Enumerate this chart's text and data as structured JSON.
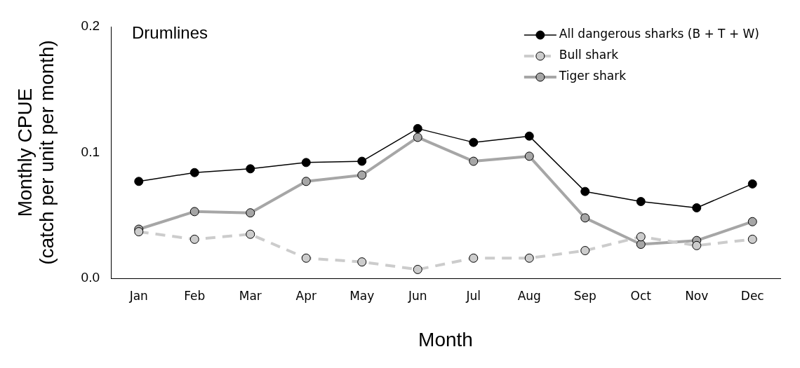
{
  "chart_data": {
    "type": "line",
    "xlabel": "Month",
    "ylabel": "Monthly CPUE\n(catch per unit per month)",
    "annotations": [
      "Drumlines"
    ],
    "categories": [
      "Jan",
      "Feb",
      "Mar",
      "Apr",
      "May",
      "Jun",
      "Jul",
      "Aug",
      "Sep",
      "Oct",
      "Nov",
      "Dec"
    ],
    "series": [
      {
        "name": "All dangerous sharks (B + T + W)",
        "color": "#000000",
        "line_style": "solid",
        "values": [
          0.077,
          0.084,
          0.087,
          0.092,
          0.093,
          0.119,
          0.108,
          0.113,
          0.069,
          0.061,
          0.056,
          0.075
        ]
      },
      {
        "name": "Bull shark",
        "color": "#cccccc",
        "line_style": "dashed",
        "values": [
          0.037,
          0.031,
          0.035,
          0.016,
          0.013,
          0.007,
          0.016,
          0.016,
          0.022,
          0.033,
          0.026,
          0.031
        ]
      },
      {
        "name": "Tiger shark",
        "color": "#a6a6a6",
        "line_style": "solid",
        "values": [
          0.039,
          0.053,
          0.052,
          0.077,
          0.082,
          0.112,
          0.093,
          0.097,
          0.048,
          0.027,
          0.03,
          0.045
        ]
      }
    ],
    "ylim": [
      0,
      0.2
    ],
    "yticks": [
      {
        "value": 0,
        "label": "0.0"
      },
      0.1,
      0.2
    ],
    "grid": false,
    "legend": "top right",
    "marker": "circle"
  }
}
